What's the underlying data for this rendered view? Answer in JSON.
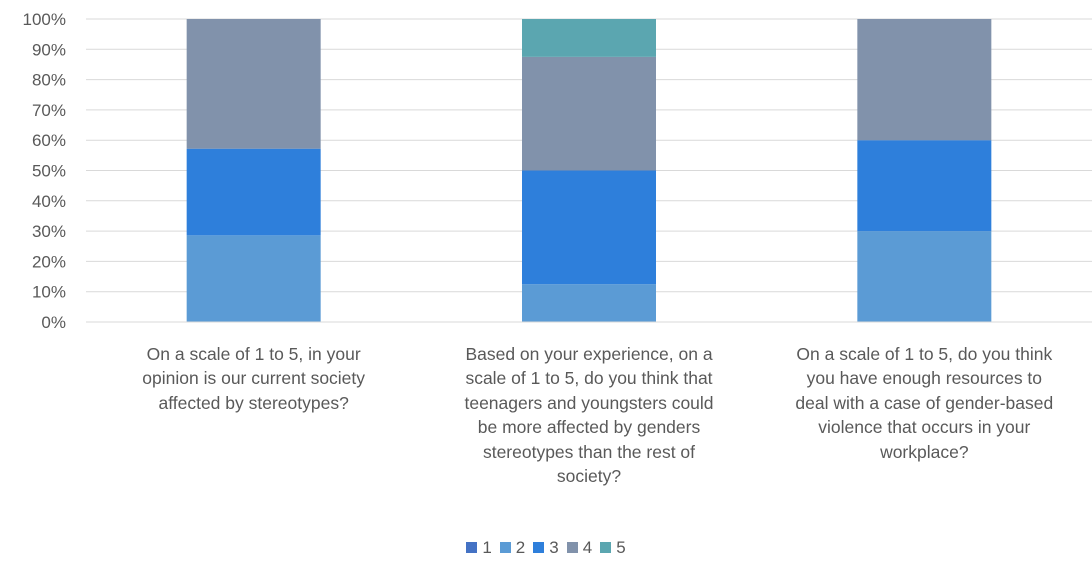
{
  "chart_data": {
    "type": "bar",
    "stacked": true,
    "normalized": true,
    "categories": [
      "On a scale of 1 to 5, in your opinion is our current society affected by stereotypes?",
      "Based on your experience, on a scale of 1 to 5, do you think that teenagers and youngsters could be more affected by genders stereotypes than the rest of society?",
      "On a scale of 1 to 5, do you think you have enough resources to deal with a case of gender-based violence that occurs in your workplace?"
    ],
    "category_lines": [
      [
        "On a scale of 1 to 5, in your",
        "opinion is our current society",
        "affected by stereotypes?"
      ],
      [
        "Based on your experience, on a",
        "scale of 1 to 5, do you think that",
        "teenagers and youngsters could",
        "be more affected by genders",
        "stereotypes than the rest of",
        "society?"
      ],
      [
        "On a scale of 1 to 5, do you think",
        "you have enough resources to",
        "deal with a case of gender-based",
        "violence that occurs in your",
        "workplace?"
      ]
    ],
    "series": [
      {
        "name": "1",
        "color": "#4472C4",
        "values": [
          0,
          0,
          0
        ]
      },
      {
        "name": "2",
        "color": "#5B9BD5",
        "values": [
          28.6,
          12.5,
          30
        ]
      },
      {
        "name": "3",
        "color": "#2E7FDB",
        "values": [
          28.6,
          37.5,
          30
        ]
      },
      {
        "name": "4",
        "color": "#8192AB",
        "values": [
          42.8,
          37.5,
          40
        ]
      },
      {
        "name": "5",
        "color": "#5BA6B0",
        "values": [
          0,
          12.5,
          0
        ]
      }
    ],
    "y_ticks": [
      "0%",
      "10%",
      "20%",
      "30%",
      "40%",
      "50%",
      "60%",
      "70%",
      "80%",
      "90%",
      "100%"
    ],
    "ylim": [
      0,
      100
    ],
    "grid": true,
    "legend_position": "bottom",
    "title": "",
    "xlabel": "",
    "ylabel": ""
  }
}
